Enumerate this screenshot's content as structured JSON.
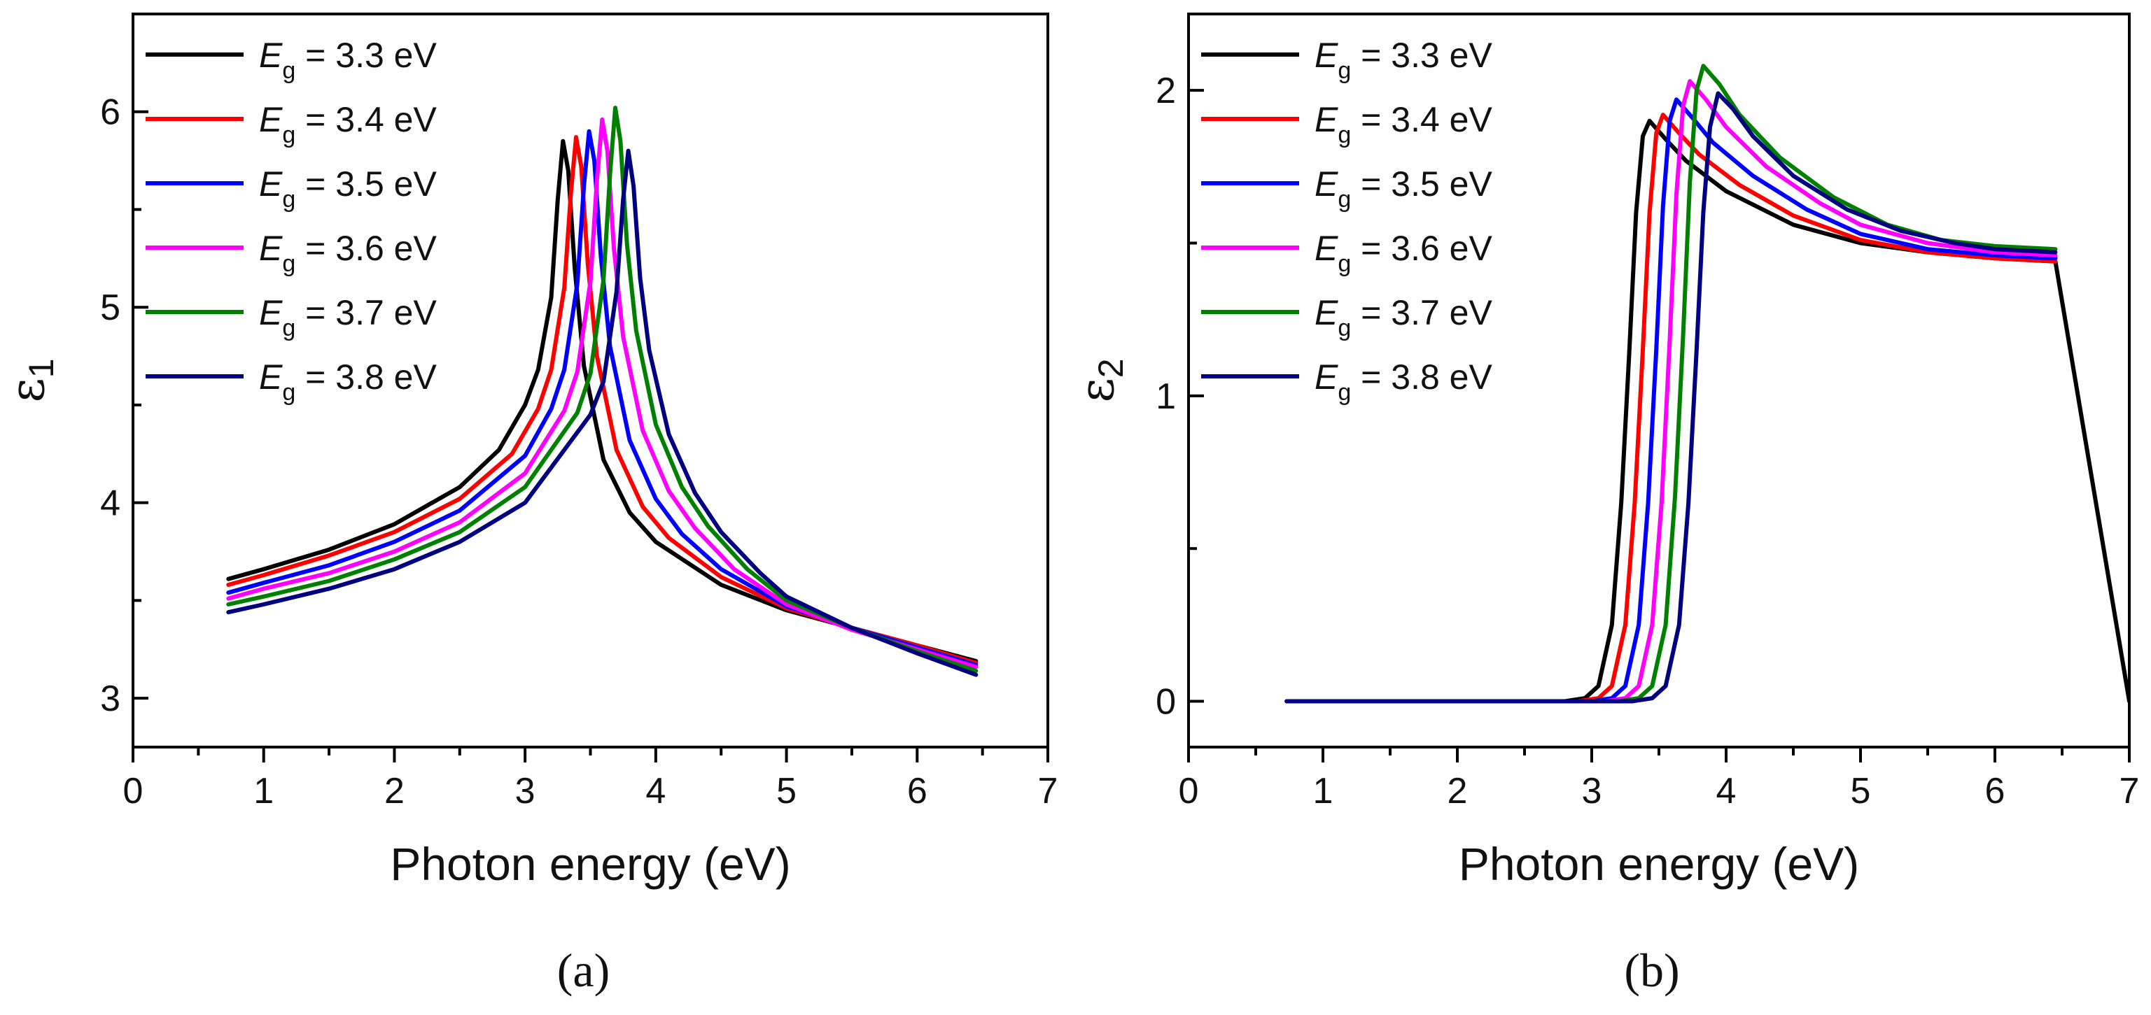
{
  "chart_data": [
    {
      "type": "line",
      "panel_label": "(a)",
      "xlabel": "Photon energy (eV)",
      "ylabel_symbol": "ε",
      "ylabel_subscript": "1",
      "xlim": [
        0,
        7
      ],
      "ylim": [
        2.75,
        6.5
      ],
      "xticks": [
        "0",
        "1",
        "2",
        "3",
        "4",
        "5",
        "6",
        "7"
      ],
      "yticks": [
        "3",
        "4",
        "5",
        "6"
      ],
      "legend_position": "top-left",
      "series": [
        {
          "name": "Eg = 3.3 eV",
          "legend_symbol": "E",
          "legend_sub": "g",
          "legend_rest": " = 3.3 eV",
          "color": "#000000",
          "points": [
            [
              0.73,
              3.61
            ],
            [
              1.0,
              3.66
            ],
            [
              1.5,
              3.76
            ],
            [
              2.0,
              3.89
            ],
            [
              2.5,
              4.08
            ],
            [
              2.8,
              4.27
            ],
            [
              3.0,
              4.5
            ],
            [
              3.1,
              4.68
            ],
            [
              3.2,
              5.05
            ],
            [
              3.25,
              5.55
            ],
            [
              3.29,
              5.85
            ],
            [
              3.33,
              5.7
            ],
            [
              3.38,
              5.2
            ],
            [
              3.45,
              4.7
            ],
            [
              3.6,
              4.22
            ],
            [
              3.8,
              3.95
            ],
            [
              4.0,
              3.8
            ],
            [
              4.5,
              3.58
            ],
            [
              5.0,
              3.45
            ],
            [
              5.5,
              3.36
            ],
            [
              6.0,
              3.27
            ],
            [
              6.45,
              3.19
            ]
          ]
        },
        {
          "name": "Eg = 3.4 eV",
          "legend_symbol": "E",
          "legend_sub": "g",
          "legend_rest": " = 3.4 eV",
          "color": "#ff0000",
          "points": [
            [
              0.73,
              3.58
            ],
            [
              1.0,
              3.63
            ],
            [
              1.5,
              3.73
            ],
            [
              2.0,
              3.85
            ],
            [
              2.5,
              4.02
            ],
            [
              2.9,
              4.25
            ],
            [
              3.1,
              4.48
            ],
            [
              3.2,
              4.68
            ],
            [
              3.3,
              5.1
            ],
            [
              3.35,
              5.58
            ],
            [
              3.39,
              5.87
            ],
            [
              3.43,
              5.72
            ],
            [
              3.48,
              5.22
            ],
            [
              3.55,
              4.75
            ],
            [
              3.7,
              4.27
            ],
            [
              3.9,
              3.98
            ],
            [
              4.1,
              3.82
            ],
            [
              4.5,
              3.62
            ],
            [
              5.0,
              3.46
            ],
            [
              5.5,
              3.36
            ],
            [
              6.0,
              3.27
            ],
            [
              6.45,
              3.18
            ]
          ]
        },
        {
          "name": "Eg = 3.5 eV",
          "legend_symbol": "E",
          "legend_sub": "g",
          "legend_rest": " = 3.5 eV",
          "color": "#0000ff",
          "points": [
            [
              0.73,
              3.54
            ],
            [
              1.0,
              3.59
            ],
            [
              1.5,
              3.68
            ],
            [
              2.0,
              3.8
            ],
            [
              2.5,
              3.96
            ],
            [
              3.0,
              4.24
            ],
            [
              3.2,
              4.48
            ],
            [
              3.3,
              4.68
            ],
            [
              3.4,
              5.12
            ],
            [
              3.45,
              5.62
            ],
            [
              3.49,
              5.9
            ],
            [
              3.53,
              5.75
            ],
            [
              3.58,
              5.26
            ],
            [
              3.65,
              4.8
            ],
            [
              3.8,
              4.32
            ],
            [
              4.0,
              4.02
            ],
            [
              4.2,
              3.84
            ],
            [
              4.5,
              3.66
            ],
            [
              5.0,
              3.47
            ],
            [
              5.5,
              3.36
            ],
            [
              6.0,
              3.26
            ],
            [
              6.45,
              3.17
            ]
          ]
        },
        {
          "name": "Eg = 3.6 eV",
          "legend_symbol": "E",
          "legend_sub": "g",
          "legend_rest": " = 3.6 eV",
          "color": "#ff00ff",
          "points": [
            [
              0.73,
              3.51
            ],
            [
              1.0,
              3.56
            ],
            [
              1.5,
              3.64
            ],
            [
              2.0,
              3.75
            ],
            [
              2.5,
              3.9
            ],
            [
              3.0,
              4.15
            ],
            [
              3.3,
              4.47
            ],
            [
              3.4,
              4.67
            ],
            [
              3.5,
              5.13
            ],
            [
              3.55,
              5.65
            ],
            [
              3.59,
              5.96
            ],
            [
              3.63,
              5.8
            ],
            [
              3.68,
              5.3
            ],
            [
              3.75,
              4.85
            ],
            [
              3.9,
              4.37
            ],
            [
              4.1,
              4.06
            ],
            [
              4.3,
              3.87
            ],
            [
              4.6,
              3.66
            ],
            [
              5.0,
              3.48
            ],
            [
              5.5,
              3.35
            ],
            [
              6.0,
              3.25
            ],
            [
              6.45,
              3.16
            ]
          ]
        },
        {
          "name": "Eg = 3.7 eV",
          "legend_symbol": "E",
          "legend_sub": "g",
          "legend_rest": " = 3.7 eV",
          "color": "#008000",
          "points": [
            [
              0.73,
              3.48
            ],
            [
              1.0,
              3.52
            ],
            [
              1.5,
              3.6
            ],
            [
              2.0,
              3.71
            ],
            [
              2.5,
              3.85
            ],
            [
              3.0,
              4.08
            ],
            [
              3.4,
              4.46
            ],
            [
              3.5,
              4.66
            ],
            [
              3.6,
              5.14
            ],
            [
              3.65,
              5.68
            ],
            [
              3.69,
              6.02
            ],
            [
              3.73,
              5.85
            ],
            [
              3.78,
              5.32
            ],
            [
              3.85,
              4.88
            ],
            [
              4.0,
              4.4
            ],
            [
              4.2,
              4.08
            ],
            [
              4.4,
              3.88
            ],
            [
              4.7,
              3.66
            ],
            [
              5.0,
              3.5
            ],
            [
              5.5,
              3.36
            ],
            [
              6.0,
              3.24
            ],
            [
              6.45,
              3.14
            ]
          ]
        },
        {
          "name": "Eg = 3.8 eV",
          "legend_symbol": "E",
          "legend_sub": "g",
          "legend_rest": " = 3.8 eV",
          "color": "#000080",
          "points": [
            [
              0.73,
              3.44
            ],
            [
              1.0,
              3.48
            ],
            [
              1.5,
              3.56
            ],
            [
              2.0,
              3.66
            ],
            [
              2.5,
              3.8
            ],
            [
              3.0,
              4.0
            ],
            [
              3.5,
              4.45
            ],
            [
              3.6,
              4.62
            ],
            [
              3.7,
              5.08
            ],
            [
              3.75,
              5.55
            ],
            [
              3.79,
              5.8
            ],
            [
              3.83,
              5.62
            ],
            [
              3.88,
              5.15
            ],
            [
              3.95,
              4.78
            ],
            [
              4.1,
              4.35
            ],
            [
              4.3,
              4.05
            ],
            [
              4.5,
              3.85
            ],
            [
              4.8,
              3.64
            ],
            [
              5.0,
              3.52
            ],
            [
              5.5,
              3.36
            ],
            [
              6.0,
              3.23
            ],
            [
              6.45,
              3.12
            ]
          ]
        }
      ]
    },
    {
      "type": "line",
      "panel_label": "(b)",
      "xlabel": "Photon energy (eV)",
      "ylabel_symbol": "ε",
      "ylabel_subscript": "2",
      "xlim": [
        0,
        7
      ],
      "ylim": [
        -0.15,
        2.25
      ],
      "xticks": [
        "0",
        "1",
        "2",
        "3",
        "4",
        "5",
        "6",
        "7"
      ],
      "yticks": [
        "0",
        "1",
        "2"
      ],
      "legend_position": "top-left",
      "series": [
        {
          "name": "Eg = 3.3 eV",
          "legend_symbol": "E",
          "legend_sub": "g",
          "legend_rest": " = 3.3 eV",
          "color": "#000000",
          "points": [
            [
              0.73,
              0
            ],
            [
              2.8,
              0
            ],
            [
              2.95,
              0.01
            ],
            [
              3.05,
              0.05
            ],
            [
              3.15,
              0.25
            ],
            [
              3.22,
              0.65
            ],
            [
              3.28,
              1.15
            ],
            [
              3.33,
              1.6
            ],
            [
              3.38,
              1.85
            ],
            [
              3.43,
              1.9
            ],
            [
              3.55,
              1.84
            ],
            [
              3.7,
              1.77
            ],
            [
              4.0,
              1.67
            ],
            [
              4.5,
              1.56
            ],
            [
              5.0,
              1.5
            ],
            [
              5.5,
              1.47
            ],
            [
              6.0,
              1.45
            ],
            [
              6.45,
              1.44
            ],
            [
              7.0,
              0.0
            ]
          ]
        },
        {
          "name": "Eg = 3.4 eV",
          "legend_symbol": "E",
          "legend_sub": "g",
          "legend_rest": " = 3.4 eV",
          "color": "#ff0000",
          "points": [
            [
              0.73,
              0
            ],
            [
              2.9,
              0
            ],
            [
              3.05,
              0.01
            ],
            [
              3.15,
              0.05
            ],
            [
              3.25,
              0.25
            ],
            [
              3.32,
              0.65
            ],
            [
              3.38,
              1.15
            ],
            [
              3.43,
              1.6
            ],
            [
              3.48,
              1.86
            ],
            [
              3.53,
              1.92
            ],
            [
              3.65,
              1.86
            ],
            [
              3.8,
              1.79
            ],
            [
              4.1,
              1.69
            ],
            [
              4.5,
              1.59
            ],
            [
              5.0,
              1.51
            ],
            [
              5.5,
              1.47
            ],
            [
              6.0,
              1.45
            ],
            [
              6.45,
              1.44
            ]
          ]
        },
        {
          "name": "Eg = 3.5 eV",
          "legend_symbol": "E",
          "legend_sub": "g",
          "legend_rest": " = 3.5 eV",
          "color": "#0000ff",
          "points": [
            [
              0.73,
              0
            ],
            [
              3.0,
              0
            ],
            [
              3.15,
              0.01
            ],
            [
              3.25,
              0.05
            ],
            [
              3.35,
              0.25
            ],
            [
              3.42,
              0.65
            ],
            [
              3.48,
              1.15
            ],
            [
              3.53,
              1.62
            ],
            [
              3.58,
              1.9
            ],
            [
              3.63,
              1.97
            ],
            [
              3.75,
              1.91
            ],
            [
              3.9,
              1.83
            ],
            [
              4.2,
              1.72
            ],
            [
              4.6,
              1.61
            ],
            [
              5.0,
              1.53
            ],
            [
              5.5,
              1.48
            ],
            [
              6.0,
              1.46
            ],
            [
              6.45,
              1.45
            ]
          ]
        },
        {
          "name": "Eg = 3.6 eV",
          "legend_symbol": "E",
          "legend_sub": "g",
          "legend_rest": " = 3.6 eV",
          "color": "#ff00ff",
          "points": [
            [
              0.73,
              0
            ],
            [
              3.1,
              0
            ],
            [
              3.25,
              0.01
            ],
            [
              3.35,
              0.05
            ],
            [
              3.45,
              0.25
            ],
            [
              3.52,
              0.65
            ],
            [
              3.58,
              1.18
            ],
            [
              3.63,
              1.66
            ],
            [
              3.68,
              1.95
            ],
            [
              3.73,
              2.03
            ],
            [
              3.85,
              1.97
            ],
            [
              4.0,
              1.88
            ],
            [
              4.3,
              1.75
            ],
            [
              4.7,
              1.63
            ],
            [
              5.0,
              1.56
            ],
            [
              5.5,
              1.5
            ],
            [
              6.0,
              1.47
            ],
            [
              6.45,
              1.46
            ]
          ]
        },
        {
          "name": "Eg = 3.7 eV",
          "legend_symbol": "E",
          "legend_sub": "g",
          "legend_rest": " = 3.7 eV",
          "color": "#008000",
          "points": [
            [
              0.73,
              0
            ],
            [
              3.2,
              0
            ],
            [
              3.35,
              0.01
            ],
            [
              3.45,
              0.05
            ],
            [
              3.55,
              0.25
            ],
            [
              3.62,
              0.67
            ],
            [
              3.68,
              1.2
            ],
            [
              3.73,
              1.7
            ],
            [
              3.78,
              2.0
            ],
            [
              3.83,
              2.08
            ],
            [
              3.95,
              2.02
            ],
            [
              4.1,
              1.92
            ],
            [
              4.4,
              1.78
            ],
            [
              4.8,
              1.65
            ],
            [
              5.2,
              1.56
            ],
            [
              5.6,
              1.51
            ],
            [
              6.0,
              1.49
            ],
            [
              6.45,
              1.48
            ]
          ]
        },
        {
          "name": "Eg = 3.8 eV",
          "legend_symbol": "E",
          "legend_sub": "g",
          "legend_rest": " = 3.8 eV",
          "color": "#000080",
          "points": [
            [
              0.73,
              0
            ],
            [
              3.3,
              0
            ],
            [
              3.45,
              0.01
            ],
            [
              3.55,
              0.05
            ],
            [
              3.65,
              0.25
            ],
            [
              3.72,
              0.65
            ],
            [
              3.78,
              1.15
            ],
            [
              3.83,
              1.6
            ],
            [
              3.88,
              1.88
            ],
            [
              3.94,
              1.99
            ],
            [
              4.05,
              1.94
            ],
            [
              4.2,
              1.85
            ],
            [
              4.5,
              1.72
            ],
            [
              4.9,
              1.61
            ],
            [
              5.3,
              1.54
            ],
            [
              5.7,
              1.5
            ],
            [
              6.0,
              1.48
            ],
            [
              6.45,
              1.47
            ]
          ]
        }
      ]
    }
  ]
}
